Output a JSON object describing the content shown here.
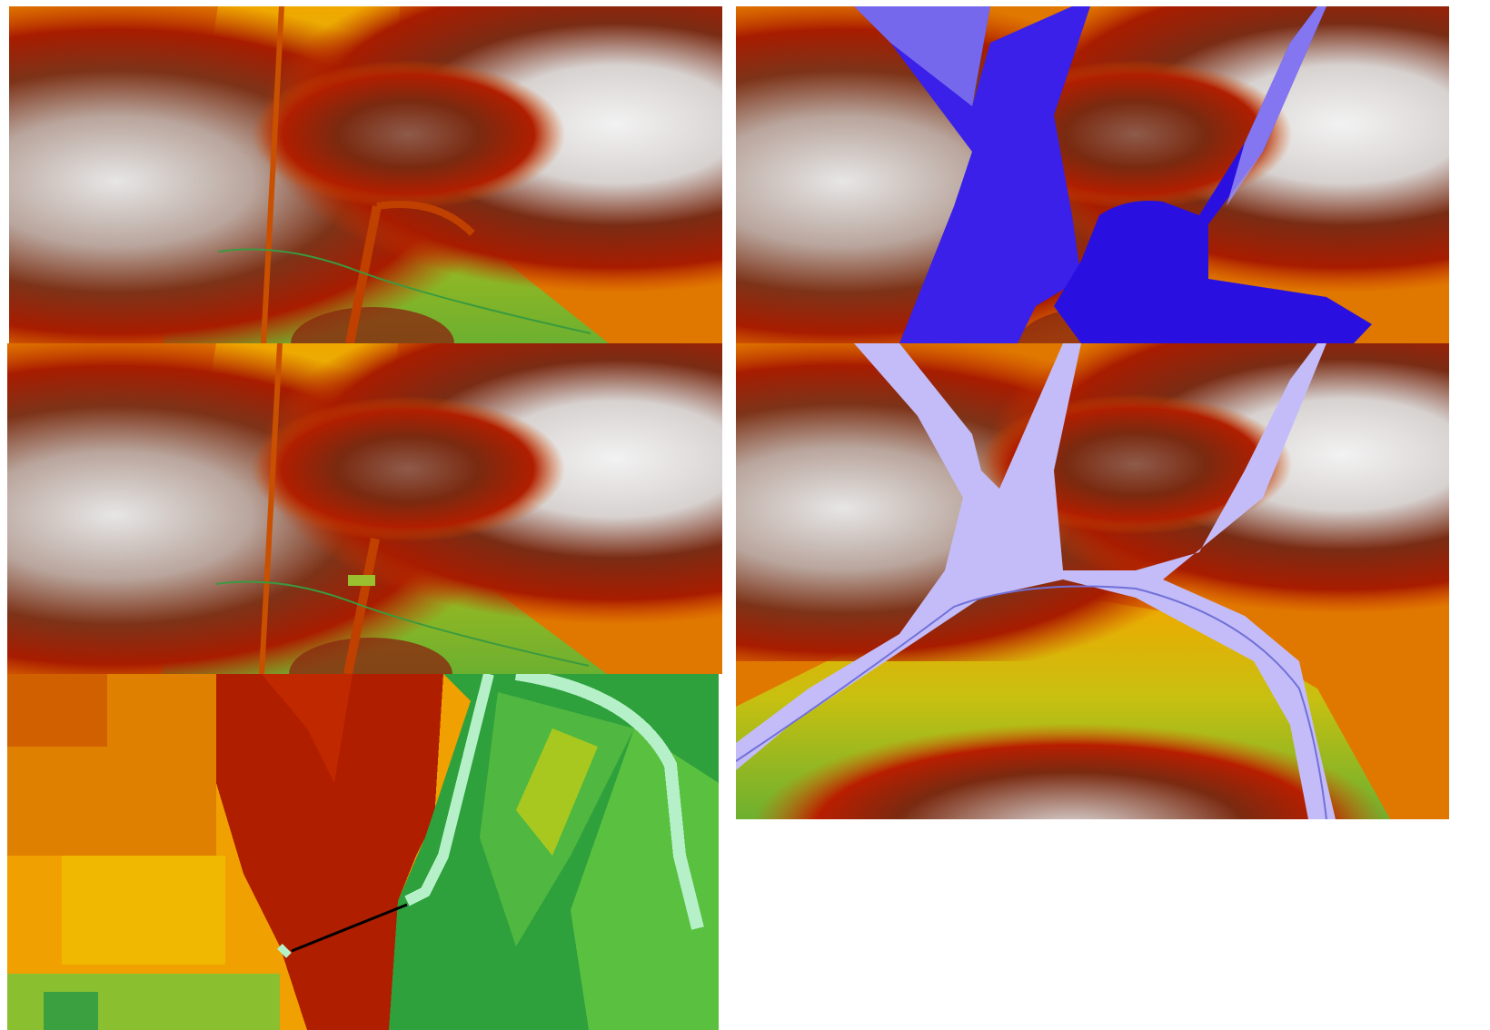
{
  "figure": {
    "panels": [
      {
        "id": "dem-original",
        "layer": "elevation",
        "legend": []
      },
      {
        "id": "dem-flood-depth",
        "layer": "elevation-with-flood-extent",
        "flood_color": "#2a10e0"
      },
      {
        "id": "dem-modified",
        "layer": "elevation",
        "legend": []
      },
      {
        "id": "dem-flood-extent-wide",
        "layer": "elevation-with-flood-extent",
        "flood_color": "#b8b0f8"
      },
      {
        "id": "dem-zoom-detail",
        "layer": "elevation-pixel-zoom",
        "transect_color": "#000000"
      }
    ],
    "colors": {
      "highland": "#e8e8e8",
      "upper_slope": "#7a2a10",
      "mid_slope": "#c02800",
      "lower_slope": "#f0a000",
      "valley_floor": "#8cc030",
      "channel": "#2e9a3c",
      "deep_flood": "#2a10e0",
      "shallow_flood": "#c8c0f8"
    }
  }
}
